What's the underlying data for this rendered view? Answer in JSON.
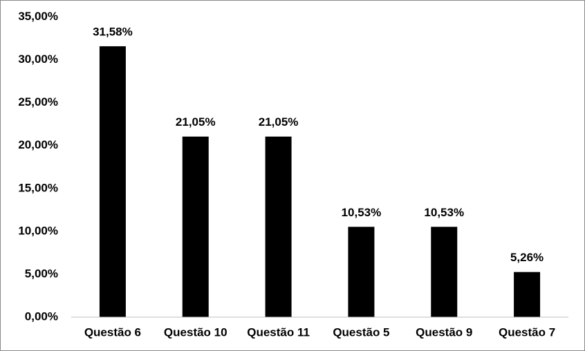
{
  "chart_data": {
    "type": "bar",
    "categories": [
      "Questão 6",
      "Questão 10",
      "Questão 11",
      "Questão 5",
      "Questão 9",
      "Questão 7"
    ],
    "values": [
      31.58,
      21.05,
      21.05,
      10.53,
      10.53,
      5.26
    ],
    "value_labels": [
      "31,58%",
      "21,05%",
      "21,05%",
      "10,53%",
      "10,53%",
      "5,26%"
    ],
    "color": "#000000",
    "ylim": [
      0,
      35
    ],
    "yticks": [
      {
        "value": 0,
        "label": "0,00%"
      },
      {
        "value": 5,
        "label": "5,00%"
      },
      {
        "value": 10,
        "label": "10,00%"
      },
      {
        "value": 15,
        "label": "15,00%"
      },
      {
        "value": 20,
        "label": "20,00%"
      },
      {
        "value": 25,
        "label": "25,00%"
      },
      {
        "value": 30,
        "label": "30,00%"
      },
      {
        "value": 35,
        "label": "35,00%"
      }
    ],
    "grid": false
  }
}
